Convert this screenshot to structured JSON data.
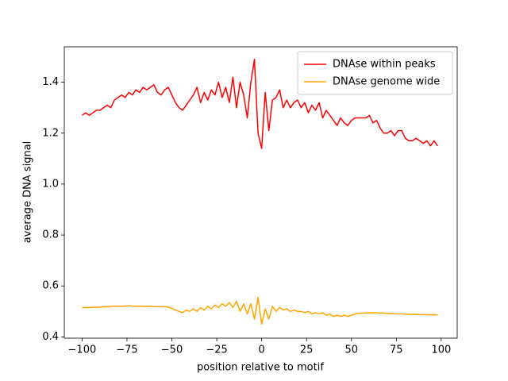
{
  "chart_data": {
    "type": "line",
    "xlabel": "position relative to motif",
    "ylabel": "average DNA signal",
    "x": [
      -100,
      -98,
      -96,
      -94,
      -92,
      -90,
      -88,
      -86,
      -84,
      -82,
      -80,
      -78,
      -76,
      -74,
      -72,
      -70,
      -68,
      -66,
      -64,
      -62,
      -60,
      -58,
      -56,
      -54,
      -52,
      -50,
      -48,
      -46,
      -44,
      -42,
      -40,
      -38,
      -36,
      -34,
      -32,
      -30,
      -28,
      -26,
      -24,
      -22,
      -20,
      -18,
      -16,
      -14,
      -12,
      -10,
      -8,
      -6,
      -4,
      -2,
      0,
      2,
      4,
      6,
      8,
      10,
      12,
      14,
      16,
      18,
      20,
      22,
      24,
      26,
      28,
      30,
      32,
      34,
      36,
      38,
      40,
      42,
      44,
      46,
      48,
      50,
      52,
      54,
      56,
      58,
      60,
      62,
      64,
      66,
      68,
      70,
      72,
      74,
      76,
      78,
      80,
      82,
      84,
      86,
      88,
      90,
      92,
      94,
      96,
      98
    ],
    "series": [
      {
        "name": "DNAse within peaks",
        "color": "#ff0000",
        "values": [
          1.27,
          1.28,
          1.27,
          1.28,
          1.29,
          1.29,
          1.3,
          1.31,
          1.3,
          1.33,
          1.34,
          1.35,
          1.34,
          1.36,
          1.35,
          1.37,
          1.36,
          1.38,
          1.37,
          1.38,
          1.39,
          1.36,
          1.35,
          1.37,
          1.38,
          1.35,
          1.32,
          1.3,
          1.29,
          1.31,
          1.33,
          1.35,
          1.38,
          1.32,
          1.36,
          1.33,
          1.37,
          1.35,
          1.4,
          1.34,
          1.38,
          1.32,
          1.42,
          1.3,
          1.4,
          1.35,
          1.26,
          1.4,
          1.49,
          1.2,
          1.14,
          1.36,
          1.21,
          1.33,
          1.34,
          1.37,
          1.3,
          1.33,
          1.3,
          1.32,
          1.33,
          1.3,
          1.32,
          1.28,
          1.31,
          1.29,
          1.32,
          1.26,
          1.29,
          1.27,
          1.25,
          1.23,
          1.26,
          1.24,
          1.23,
          1.25,
          1.26,
          1.26,
          1.26,
          1.26,
          1.27,
          1.24,
          1.25,
          1.22,
          1.2,
          1.2,
          1.21,
          1.19,
          1.21,
          1.21,
          1.18,
          1.17,
          1.17,
          1.18,
          1.17,
          1.16,
          1.17,
          1.15,
          1.17,
          1.15
        ]
      },
      {
        "name": "DNAse genome wide",
        "color": "#ffa500",
        "values": [
          0.515,
          0.515,
          0.515,
          0.516,
          0.516,
          0.517,
          0.518,
          0.518,
          0.52,
          0.52,
          0.521,
          0.52,
          0.521,
          0.522,
          0.521,
          0.52,
          0.521,
          0.52,
          0.519,
          0.52,
          0.519,
          0.519,
          0.518,
          0.519,
          0.517,
          0.512,
          0.505,
          0.5,
          0.495,
          0.505,
          0.5,
          0.51,
          0.5,
          0.515,
          0.505,
          0.52,
          0.51,
          0.525,
          0.515,
          0.53,
          0.52,
          0.535,
          0.515,
          0.54,
          0.5,
          0.53,
          0.49,
          0.53,
          0.47,
          0.555,
          0.45,
          0.51,
          0.47,
          0.52,
          0.5,
          0.515,
          0.505,
          0.51,
          0.5,
          0.505,
          0.5,
          0.5,
          0.495,
          0.5,
          0.49,
          0.495,
          0.49,
          0.495,
          0.485,
          0.49,
          0.48,
          0.485,
          0.48,
          0.485,
          0.48,
          0.485,
          0.49,
          0.492,
          0.493,
          0.494,
          0.495,
          0.494,
          0.495,
          0.493,
          0.494,
          0.492,
          0.492,
          0.491,
          0.49,
          0.49,
          0.489,
          0.489,
          0.488,
          0.488,
          0.487,
          0.488,
          0.487,
          0.486,
          0.487,
          0.486
        ]
      }
    ],
    "xlim": [
      -109.9,
      108.9
    ],
    "ylim": [
      0.395,
      1.539
    ],
    "xticks": [
      {
        "value": -100,
        "label": "−100"
      },
      {
        "value": -75,
        "label": "−75"
      },
      {
        "value": -50,
        "label": "−50"
      },
      {
        "value": -25,
        "label": "−25"
      },
      0,
      25,
      50,
      75,
      100
    ],
    "yticks": [
      0.4,
      0.6,
      0.8,
      {
        "value": 1,
        "label": "1.0"
      },
      1.2,
      1.4
    ],
    "legend": "upper right",
    "grid": false
  }
}
